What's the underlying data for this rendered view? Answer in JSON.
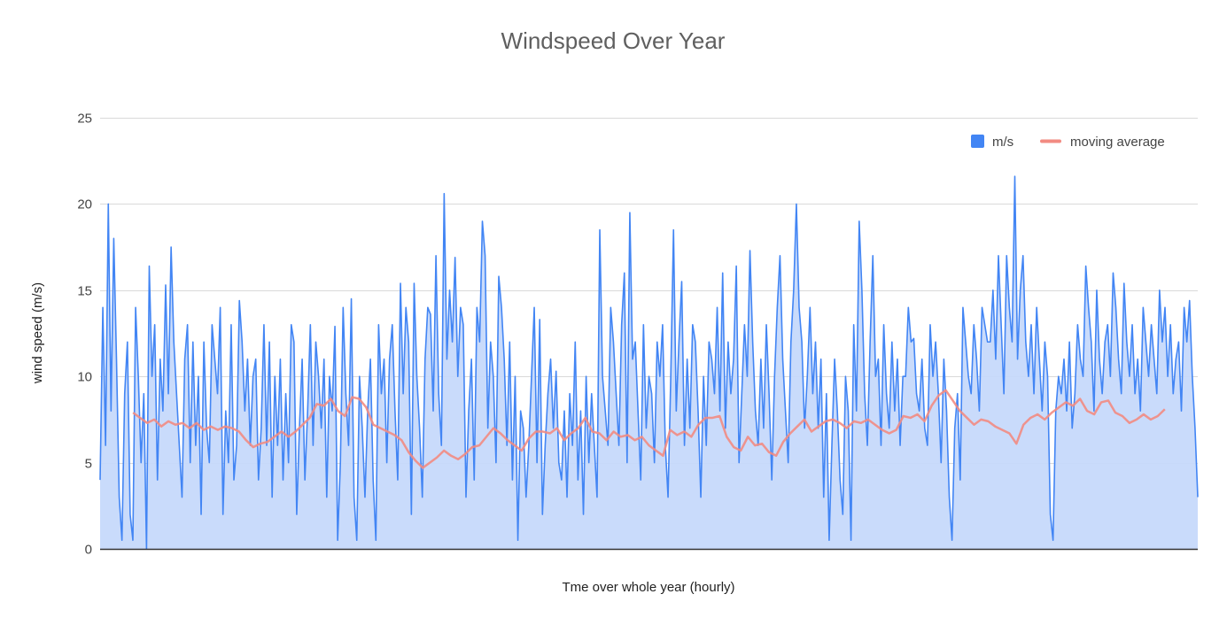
{
  "chart_data": {
    "type": "area",
    "title": "Windspeed Over Year",
    "xlabel": "Tme over whole year (hourly)",
    "ylabel": "wind speed (m/s)",
    "ylim": [
      0,
      25
    ],
    "yticks": [
      0,
      5,
      10,
      15,
      20,
      25
    ],
    "grid": true,
    "legend_position": "top-right",
    "series": [
      {
        "name": "m/s",
        "kind": "area",
        "color": "#4285f4",
        "fill": "#c6d9fb",
        "values": [
          4,
          14,
          6,
          20,
          8,
          18,
          11,
          3,
          0.5,
          9,
          12,
          2,
          0.5,
          14,
          10,
          5,
          9,
          0,
          16.4,
          10,
          13,
          4,
          11,
          8,
          15.3,
          9,
          17.5,
          12,
          9,
          6,
          3,
          11,
          13,
          5,
          12,
          6,
          10,
          2,
          12,
          7,
          5,
          13,
          11,
          9,
          14,
          2,
          8,
          5,
          13,
          4,
          6,
          14.4,
          12,
          8,
          11,
          6,
          10,
          11,
          4,
          7,
          13,
          6,
          12,
          3,
          10,
          6,
          11,
          4,
          9,
          5,
          13,
          12,
          2,
          7,
          11,
          4,
          8,
          13,
          6,
          12,
          10,
          7,
          11,
          3,
          10,
          8,
          12.9,
          0.5,
          5,
          14,
          9,
          6,
          14.5,
          3,
          0.5,
          10,
          7,
          3,
          8,
          11,
          4,
          0.5,
          13,
          9,
          11,
          5,
          11,
          13,
          8,
          4,
          15.4,
          9,
          14,
          12,
          2,
          15.4,
          10,
          7,
          3,
          11,
          14,
          13.6,
          8,
          17,
          9,
          6,
          20.6,
          11,
          15,
          12,
          16.9,
          10,
          14,
          13,
          3,
          8,
          11,
          4,
          14,
          12,
          19,
          17,
          7,
          12,
          10,
          5,
          15.8,
          14,
          11,
          6,
          12,
          4,
          10,
          0.5,
          8,
          7,
          3,
          6,
          10,
          14,
          5,
          13.3,
          2,
          6,
          9,
          11,
          7,
          10.3,
          5,
          4,
          8,
          3,
          9,
          6,
          12,
          4,
          8,
          2,
          10,
          5,
          9,
          6,
          3,
          18.5,
          10,
          8,
          6,
          14,
          12,
          9,
          6,
          13,
          16,
          5,
          19.5,
          11,
          12,
          8,
          4,
          13,
          7,
          10,
          9,
          5,
          12,
          10,
          13,
          6,
          3,
          10,
          18.5,
          8,
          12,
          15.5,
          6,
          11,
          7,
          13,
          12,
          8,
          3,
          10,
          6,
          12,
          11,
          9,
          14,
          8,
          16,
          7,
          12,
          9,
          11,
          16.4,
          5,
          9,
          13,
          10,
          17.3,
          12,
          8,
          6,
          11,
          7,
          13,
          9,
          4,
          10,
          14,
          17,
          11,
          8,
          5,
          12,
          15,
          20,
          14,
          12,
          7,
          10,
          14,
          9,
          12,
          7,
          11,
          3,
          9,
          0.5,
          6,
          11,
          8,
          4,
          2,
          10,
          8,
          0.5,
          13,
          8,
          19,
          15,
          9,
          6,
          12,
          17,
          10,
          11,
          6,
          13,
          9,
          7,
          12,
          8,
          11,
          6,
          10,
          10,
          14,
          12,
          12.2,
          9,
          8,
          11,
          7,
          6,
          13,
          10,
          12,
          9,
          5,
          11,
          8,
          3,
          0.5,
          7,
          9,
          4,
          14,
          12,
          10,
          9,
          13,
          11,
          8,
          14,
          13,
          12,
          12,
          15,
          11,
          17,
          13,
          9,
          17,
          14,
          12,
          21.6,
          11,
          15,
          17,
          12,
          10,
          13,
          9,
          14,
          11,
          8,
          12,
          10,
          2,
          0.5,
          8,
          10,
          9,
          11,
          8,
          12,
          7,
          9,
          13,
          11,
          10,
          16.4,
          14,
          12,
          8,
          15,
          11,
          9,
          12,
          13,
          10,
          16,
          14,
          11,
          9,
          15.4,
          12,
          10,
          13,
          9,
          11,
          8,
          14,
          12,
          10,
          13,
          11,
          9,
          15,
          12,
          14,
          10,
          13,
          9,
          11,
          12,
          8,
          14,
          12,
          14.4,
          10,
          7,
          3
        ]
      },
      {
        "name": "moving average",
        "kind": "line",
        "color": "#f28b82",
        "x_start_frac": 0.03,
        "x_end_frac": 0.97,
        "values": [
          7.9,
          7.6,
          7.3,
          7.5,
          7.1,
          7.4,
          7.2,
          7.3,
          7.0,
          7.3,
          6.9,
          7.1,
          6.9,
          7.1,
          7.0,
          6.8,
          6.3,
          5.9,
          6.1,
          6.2,
          6.5,
          6.8,
          6.5,
          6.8,
          7.2,
          7.6,
          8.4,
          8.3,
          8.7,
          8.0,
          7.7,
          8.8,
          8.7,
          8.2,
          7.2,
          7.0,
          6.8,
          6.6,
          6.3,
          5.6,
          5.1,
          4.7,
          5.0,
          5.3,
          5.7,
          5.4,
          5.2,
          5.5,
          5.9,
          6.0,
          6.5,
          7.0,
          6.7,
          6.3,
          6.0,
          5.7,
          6.4,
          6.8,
          6.8,
          6.7,
          7.0,
          6.3,
          6.7,
          7.0,
          7.6,
          6.8,
          6.7,
          6.3,
          6.8,
          6.5,
          6.6,
          6.3,
          6.5,
          6.0,
          5.7,
          5.4,
          6.9,
          6.6,
          6.8,
          6.5,
          7.2,
          7.6,
          7.6,
          7.7,
          6.5,
          5.9,
          5.7,
          6.5,
          6.0,
          6.1,
          5.6,
          5.4,
          6.2,
          6.7,
          7.1,
          7.5,
          6.8,
          7.1,
          7.4,
          7.5,
          7.3,
          7.0,
          7.4,
          7.3,
          7.5,
          7.2,
          6.9,
          6.7,
          6.9,
          7.7,
          7.6,
          7.8,
          7.4,
          8.3,
          8.9,
          9.2,
          8.6,
          8.0,
          7.6,
          7.2,
          7.5,
          7.4,
          7.1,
          6.9,
          6.7,
          6.1,
          7.2,
          7.6,
          7.8,
          7.5,
          7.9,
          8.2,
          8.5,
          8.3,
          8.7,
          8.0,
          7.8,
          8.5,
          8.6,
          7.9,
          7.7,
          7.3,
          7.5,
          7.8,
          7.5,
          7.7,
          8.1
        ]
      }
    ]
  }
}
